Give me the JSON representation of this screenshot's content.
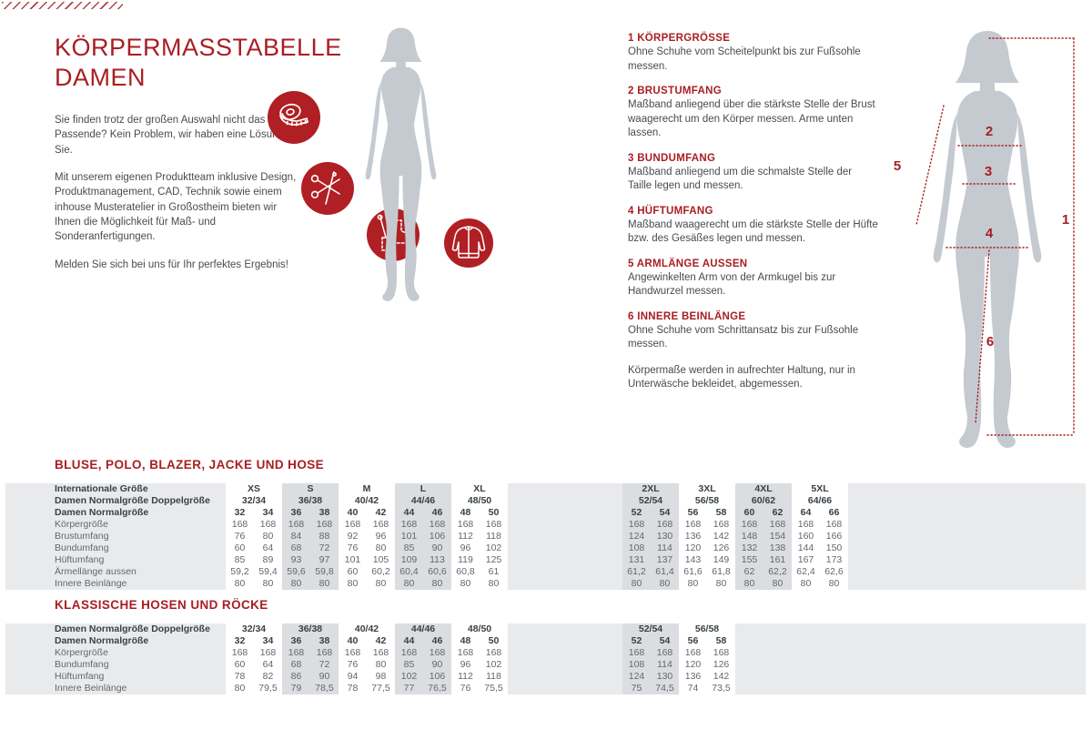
{
  "header": {
    "title_line1": "KÖRPERMASSTABELLE",
    "title_line2": "DAMEN",
    "intro": [
      "Sie finden trotz der großen Auswahl nicht das Passende? Kein Problem, wir haben eine Lösung für Sie.",
      "Mit unserem eigenen Produktteam inklusive Design, Produktmanagement, CAD, Technik sowie einem inhouse Musteratelier in Großostheim bieten wir Ihnen die Möglichkeit für Maß- und Sonderanfertigungen.",
      "Melden Sie sich bei uns für Ihr perfektes Ergebnis!"
    ]
  },
  "instructions": [
    {
      "num": "1",
      "heading": "KÖRPERGRÖSSE",
      "text": "Ohne Schuhe vom Scheitelpunkt bis zur Fußsohle messen."
    },
    {
      "num": "2",
      "heading": "BRUSTUMFANG",
      "text": "Maßband anliegend über die stärkste Stelle der Brust waagerecht um den Körper messen. Arme unten lassen."
    },
    {
      "num": "3",
      "heading": "BUNDUMFANG",
      "text": "Maßband anliegend um die schmalste Stelle der Taille legen und messen."
    },
    {
      "num": "4",
      "heading": "HÜFTUMFANG",
      "text": "Maßband waagerecht um die stärkste Stelle der Hüfte bzw. des Gesäßes legen und messen."
    },
    {
      "num": "5",
      "heading": "ARMLÄNGE AUSSEN",
      "text": "Angewinkelten Arm von der Armkugel bis zur Handwurzel messen."
    },
    {
      "num": "6",
      "heading": "INNERE BEINLÄNGE",
      "text": "Ohne Schuhe vom Schrittansatz bis zur Fußsohle messen."
    }
  ],
  "note": "Körpermaße werden in aufrechter Haltung, nur in Unterwäsche bekleidet, abgemessen.",
  "icons": [
    "measuring-tape-icon",
    "scissors-icon",
    "pattern-pieces-icon",
    "jacket-icon"
  ],
  "colors": {
    "brand_red": "#a81e22",
    "icon_red": "#b01f24",
    "silhouette_gray": "#c5cad0",
    "table_light": "#e9eaec",
    "table_highlight": "#dbdde0"
  },
  "tables": [
    {
      "heading": "BLUSE, POLO, BLAZER, JACKE UND HOSE",
      "groups": 9,
      "split_after": 5,
      "highlight_groups": [
        1,
        3,
        5,
        7
      ],
      "rows": [
        {
          "label": "Internationale Größe",
          "type": "group",
          "bold": true,
          "values": [
            "XS",
            "S",
            "M",
            "L",
            "XL",
            "2XL",
            "3XL",
            "4XL",
            "5XL"
          ]
        },
        {
          "label": "Damen Normalgröße Doppelgröße",
          "type": "group",
          "bold": true,
          "values": [
            "32/34",
            "36/38",
            "40/42",
            "44/46",
            "48/50",
            "52/54",
            "56/58",
            "60/62",
            "64/66"
          ]
        },
        {
          "label": "Damen Normalgröße",
          "type": "cols",
          "bold": true,
          "values": [
            "32",
            "34",
            "36",
            "38",
            "40",
            "42",
            "44",
            "46",
            "48",
            "50",
            "52",
            "54",
            "56",
            "58",
            "60",
            "62",
            "64",
            "66"
          ]
        },
        {
          "label": "Körpergröße",
          "type": "cols",
          "values": [
            "168",
            "168",
            "168",
            "168",
            "168",
            "168",
            "168",
            "168",
            "168",
            "168",
            "168",
            "168",
            "168",
            "168",
            "168",
            "168",
            "168",
            "168"
          ]
        },
        {
          "label": "Brustumfang",
          "type": "cols",
          "values": [
            "76",
            "80",
            "84",
            "88",
            "92",
            "96",
            "101",
            "106",
            "112",
            "118",
            "124",
            "130",
            "136",
            "142",
            "148",
            "154",
            "160",
            "166"
          ]
        },
        {
          "label": "Bundumfang",
          "type": "cols",
          "values": [
            "60",
            "64",
            "68",
            "72",
            "76",
            "80",
            "85",
            "90",
            "96",
            "102",
            "108",
            "114",
            "120",
            "126",
            "132",
            "138",
            "144",
            "150"
          ]
        },
        {
          "label": "Hüftumfang",
          "type": "cols",
          "values": [
            "85",
            "89",
            "93",
            "97",
            "101",
            "105",
            "109",
            "113",
            "119",
            "125",
            "131",
            "137",
            "143",
            "149",
            "155",
            "161",
            "167",
            "173"
          ]
        },
        {
          "label": "Ärmellänge aussen",
          "type": "cols",
          "values": [
            "59,2",
            "59,4",
            "59,6",
            "59,8",
            "60",
            "60,2",
            "60,4",
            "60,6",
            "60,8",
            "61",
            "61,2",
            "61,4",
            "61,6",
            "61,8",
            "62",
            "62,2",
            "62,4",
            "62,6"
          ]
        },
        {
          "label": "Innere Beinlänge",
          "type": "cols",
          "values": [
            "80",
            "80",
            "80",
            "80",
            "80",
            "80",
            "80",
            "80",
            "80",
            "80",
            "80",
            "80",
            "80",
            "80",
            "80",
            "80",
            "80",
            "80"
          ]
        }
      ]
    },
    {
      "heading": "KLASSISCHE HOSEN UND RÖCKE",
      "groups": 7,
      "split_after": 5,
      "highlight_groups": [
        1,
        3,
        5
      ],
      "rows": [
        {
          "label": "Damen Normalgröße Doppelgröße",
          "type": "group",
          "bold": true,
          "values": [
            "32/34",
            "36/38",
            "40/42",
            "44/46",
            "48/50",
            "52/54",
            "56/58"
          ]
        },
        {
          "label": "Damen Normalgröße",
          "type": "cols",
          "bold": true,
          "values": [
            "32",
            "34",
            "36",
            "38",
            "40",
            "42",
            "44",
            "46",
            "48",
            "50",
            "52",
            "54",
            "56",
            "58"
          ]
        },
        {
          "label": "Körpergröße",
          "type": "cols",
          "values": [
            "168",
            "168",
            "168",
            "168",
            "168",
            "168",
            "168",
            "168",
            "168",
            "168",
            "168",
            "168",
            "168",
            "168"
          ]
        },
        {
          "label": "Bundumfang",
          "type": "cols",
          "values": [
            "60",
            "64",
            "68",
            "72",
            "76",
            "80",
            "85",
            "90",
            "96",
            "102",
            "108",
            "114",
            "120",
            "126"
          ]
        },
        {
          "label": "Hüftumfang",
          "type": "cols",
          "values": [
            "78",
            "82",
            "86",
            "90",
            "94",
            "98",
            "102",
            "106",
            "112",
            "118",
            "124",
            "130",
            "136",
            "142"
          ]
        },
        {
          "label": "Innere Beinlänge",
          "type": "cols",
          "values": [
            "80",
            "79,5",
            "79",
            "78,5",
            "78",
            "77,5",
            "77",
            "76,5",
            "76",
            "75,5",
            "75",
            "74,5",
            "74",
            "73,5"
          ]
        }
      ]
    }
  ]
}
